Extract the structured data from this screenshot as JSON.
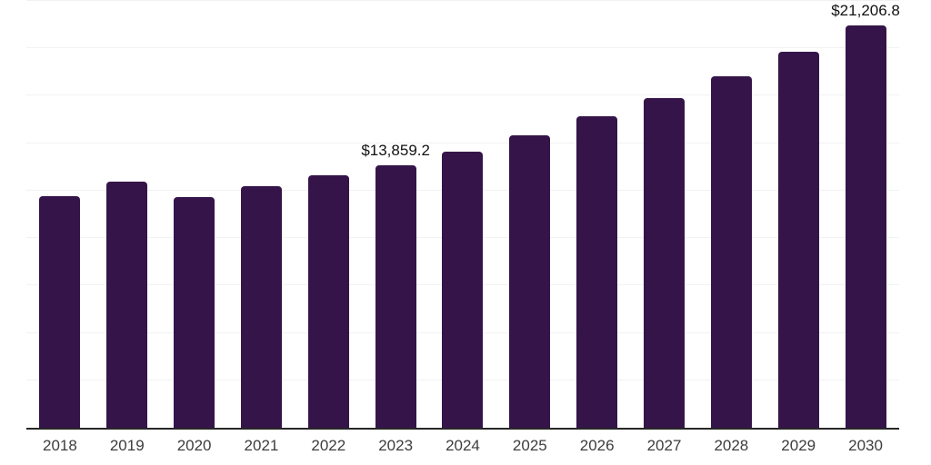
{
  "chart_data": {
    "type": "bar",
    "title": "",
    "xlabel": "",
    "ylabel": "",
    "categories": [
      "2018",
      "2019",
      "2020",
      "2021",
      "2022",
      "2023",
      "2024",
      "2025",
      "2026",
      "2027",
      "2028",
      "2029",
      "2030"
    ],
    "values": [
      12220,
      12960,
      12175,
      12735,
      13325,
      13859.2,
      14570,
      15400,
      16405,
      17365,
      18525,
      19805,
      21206.8
    ],
    "data_labels": [
      "",
      "",
      "",
      "",
      "",
      "$13,859.2",
      "",
      "",
      "",
      "",
      "",
      "",
      "$21,206.8"
    ],
    "ylim": [
      0,
      22500
    ],
    "grid_step": 2500,
    "grid": true,
    "legend": false,
    "colors": {
      "bar": "#351549",
      "gridline": "#f2f2f2",
      "axis_line": "#262626",
      "tick_label": "#3d3d3d",
      "data_label": "#121212",
      "background": "#ffffff"
    }
  }
}
